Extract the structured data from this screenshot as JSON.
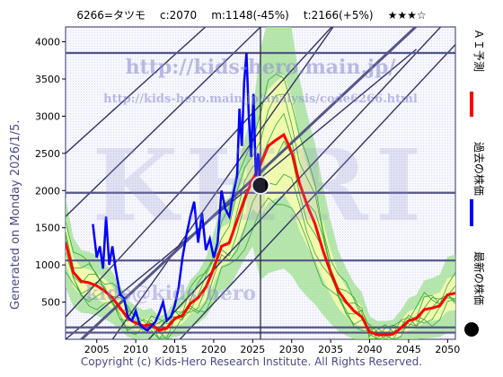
{
  "header": {
    "code_name": "6266=タツモ",
    "current": "c:2070",
    "minimum": "m:1148(-45%)",
    "target": "t:2166(+5%)",
    "rating": "★★★☆"
  },
  "watermarks": {
    "url_main": "http://kids-hero.main.jp/",
    "url_sub": "http://kids-hero.main.jp/analysis/code6266.html",
    "logo": "KHRI",
    "handle": "kids@kids-hero"
  },
  "side_note": "Generated on Monday 2026/1/5.",
  "footer": "Copyright (c) Kids-Hero Research Institute. All Rights Reserved.",
  "legend": {
    "ai_forecast": "ＡＩ予測",
    "past_price": "過去の株価",
    "latest_price": "最新の株価"
  },
  "colors": {
    "ai_forecast": "#ff0000",
    "past_price": "#0000ff",
    "latest_price": "#000000",
    "band": "#a0e090",
    "band_core": "#ffffb0",
    "grid": "#333366"
  },
  "chart_data": {
    "type": "line",
    "title": "",
    "xlabel": "",
    "ylabel": "",
    "xlim": [
      2001,
      2051
    ],
    "ylim": [
      0,
      4200
    ],
    "x_ticks": [
      2005,
      2010,
      2015,
      2020,
      2025,
      2030,
      2035,
      2040,
      2045,
      2050
    ],
    "y_ticks": [
      500,
      1000,
      1500,
      2000,
      2500,
      3000,
      3500,
      4000
    ],
    "horizontal_levels": [
      3850,
      1970,
      1060,
      160,
      90
    ],
    "latest_point": {
      "x": 2026.0,
      "y": 2070
    },
    "series": [
      {
        "name": "ＡＩ予測",
        "x": [
          2001,
          2002,
          2003,
          2004,
          2005,
          2006,
          2007,
          2008,
          2009,
          2010,
          2011,
          2012,
          2013,
          2014,
          2015,
          2016,
          2017,
          2018,
          2019,
          2020,
          2021,
          2022,
          2023,
          2024,
          2025,
          2026,
          2027,
          2028,
          2029,
          2030,
          2031,
          2032,
          2033,
          2034,
          2035,
          2036,
          2037,
          2038,
          2039,
          2040,
          2041,
          2042,
          2043,
          2044,
          2045,
          2046,
          2047,
          2048,
          2049,
          2050,
          2051
        ],
        "values": [
          1300,
          900,
          780,
          760,
          720,
          650,
          560,
          420,
          280,
          220,
          180,
          200,
          120,
          150,
          280,
          320,
          480,
          560,
          700,
          950,
          1250,
          1300,
          1600,
          1900,
          2150,
          2350,
          2600,
          2680,
          2750,
          2520,
          2100,
          1800,
          1550,
          1200,
          900,
          650,
          500,
          380,
          300,
          100,
          60,
          60,
          70,
          150,
          250,
          280,
          400,
          420,
          450,
          600,
          620
        ]
      },
      {
        "name": "過去の株価",
        "x": [
          2004.5,
          2005.0,
          2005.4,
          2005.8,
          2006.2,
          2006.6,
          2007.0,
          2007.4,
          2008.0,
          2008.5,
          2009.0,
          2009.5,
          2010.0,
          2010.5,
          2011.0,
          2011.5,
          2012.0,
          2012.5,
          2013.0,
          2013.5,
          2014.0,
          2014.5,
          2015.0,
          2015.5,
          2016.0,
          2016.5,
          2017.0,
          2017.5,
          2018.0,
          2018.5,
          2019.0,
          2019.5,
          2020.0,
          2020.5,
          2021.0,
          2021.5,
          2022.0,
          2022.5,
          2023.0,
          2023.3,
          2023.6,
          2023.9,
          2024.2,
          2024.5,
          2024.8,
          2025.1,
          2025.4,
          2025.7,
          2026.0
        ],
        "values": [
          1550,
          1100,
          1250,
          950,
          1650,
          1000,
          1250,
          950,
          600,
          550,
          300,
          250,
          380,
          200,
          150,
          120,
          180,
          230,
          350,
          500,
          250,
          300,
          450,
          700,
          1100,
          1400,
          1650,
          1850,
          1300,
          1700,
          1200,
          1350,
          1100,
          1300,
          2000,
          1750,
          1650,
          1950,
          2200,
          3100,
          2600,
          3450,
          3850,
          3000,
          2450,
          3300,
          2200,
          2500,
          2070
        ]
      }
    ]
  }
}
